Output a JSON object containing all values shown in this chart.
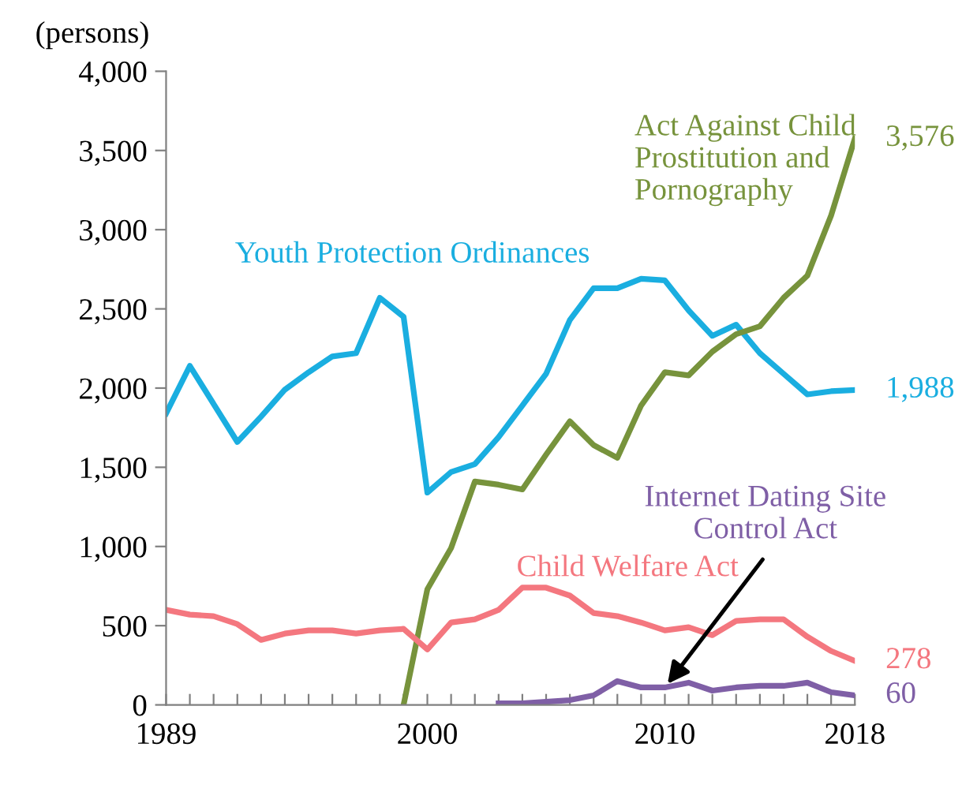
{
  "chart_data": {
    "type": "line",
    "ylabel": "(persons)",
    "x": [
      1989,
      1990,
      1991,
      1992,
      1993,
      1994,
      1995,
      1996,
      1997,
      1998,
      1999,
      2000,
      2001,
      2002,
      2003,
      2004,
      2005,
      2006,
      2007,
      2008,
      2009,
      2010,
      2011,
      2012,
      2013,
      2014,
      2015,
      2016,
      2017,
      2018
    ],
    "series": [
      {
        "name": "Youth Protection Ordinances",
        "color": "#1aaee0",
        "values": [
          1840,
          2140,
          1900,
          1660,
          1820,
          1990,
          2100,
          2200,
          2220,
          2570,
          2450,
          1340,
          1470,
          1520,
          1690,
          1890,
          2090,
          2430,
          2630,
          2630,
          2690,
          2680,
          2490,
          2330,
          2400,
          2220,
          2090,
          1960,
          1980,
          1988
        ],
        "value_labels": [
          null,
          null,
          null,
          null,
          null,
          null,
          null,
          null,
          null,
          null,
          null,
          null,
          null,
          null,
          null,
          null,
          null,
          null,
          null,
          null,
          null,
          null,
          null,
          null,
          null,
          null,
          null,
          null,
          null,
          "1,988"
        ]
      },
      {
        "name": "Act Against Child\nProstitution and\nPornography",
        "color": "#77933c",
        "values": [
          null,
          null,
          null,
          null,
          null,
          null,
          null,
          null,
          null,
          null,
          0,
          730,
          990,
          1410,
          1390,
          1360,
          1580,
          1790,
          1640,
          1560,
          1890,
          2100,
          2080,
          2230,
          2340,
          2390,
          2570,
          2710,
          3090,
          3576
        ],
        "value_labels": [
          null,
          null,
          null,
          null,
          null,
          null,
          null,
          null,
          null,
          null,
          null,
          null,
          null,
          null,
          null,
          null,
          null,
          null,
          null,
          null,
          null,
          null,
          null,
          null,
          null,
          null,
          null,
          null,
          null,
          "3,576"
        ]
      },
      {
        "name": "Child Welfare Act",
        "color": "#f4777f",
        "values": [
          600,
          570,
          560,
          510,
          410,
          450,
          470,
          470,
          450,
          470,
          480,
          350,
          520,
          540,
          600,
          740,
          740,
          690,
          580,
          560,
          520,
          470,
          490,
          440,
          530,
          540,
          540,
          430,
          340,
          278
        ],
        "value_labels": [
          null,
          null,
          null,
          null,
          null,
          null,
          null,
          null,
          null,
          null,
          null,
          null,
          null,
          null,
          null,
          null,
          null,
          null,
          null,
          null,
          null,
          null,
          null,
          null,
          null,
          null,
          null,
          null,
          null,
          "278"
        ]
      },
      {
        "name": "Internet Dating Site\nControl Act",
        "color": "#7f5fa6",
        "values": [
          null,
          null,
          null,
          null,
          null,
          null,
          null,
          null,
          null,
          null,
          null,
          null,
          null,
          null,
          10,
          10,
          20,
          30,
          60,
          150,
          110,
          110,
          140,
          90,
          110,
          120,
          120,
          140,
          80,
          60
        ],
        "value_labels": [
          null,
          null,
          null,
          null,
          null,
          null,
          null,
          null,
          null,
          null,
          null,
          null,
          null,
          null,
          null,
          null,
          null,
          null,
          null,
          null,
          null,
          null,
          null,
          null,
          null,
          null,
          null,
          null,
          null,
          "60"
        ]
      }
    ],
    "xlim": [
      1989,
      2018
    ],
    "xticks": [
      1989,
      {
        "value": 1990,
        "label": null
      },
      {
        "value": 1991,
        "label": null
      },
      {
        "value": 1992,
        "label": null
      },
      {
        "value": 1993,
        "label": null
      },
      {
        "value": 1994,
        "label": null
      },
      {
        "value": 1995,
        "label": null
      },
      {
        "value": 1996,
        "label": null
      },
      {
        "value": 1997,
        "label": null
      },
      {
        "value": 1998,
        "label": null
      },
      {
        "value": 1999,
        "label": null
      },
      2000,
      {
        "value": 2001,
        "label": null
      },
      {
        "value": 2002,
        "label": null
      },
      {
        "value": 2003,
        "label": null
      },
      {
        "value": 2004,
        "label": null
      },
      {
        "value": 2005,
        "label": null
      },
      {
        "value": 2006,
        "label": null
      },
      {
        "value": 2007,
        "label": null
      },
      {
        "value": 2008,
        "label": null
      },
      {
        "value": 2009,
        "label": null
      },
      2010,
      {
        "value": 2011,
        "label": null
      },
      {
        "value": 2012,
        "label": null
      },
      {
        "value": 2013,
        "label": null
      },
      {
        "value": 2014,
        "label": null
      },
      {
        "value": 2015,
        "label": null
      },
      {
        "value": 2016,
        "label": null
      },
      {
        "value": 2017,
        "label": null
      },
      2018
    ],
    "ylim": [
      0,
      4000
    ],
    "yticks": [
      0,
      {
        "value": 500,
        "label": "500"
      },
      {
        "value": 1000,
        "label": "1,000"
      },
      {
        "value": 1500,
        "label": "1,500"
      },
      {
        "value": 2000,
        "label": "2,000"
      },
      {
        "value": 2500,
        "label": "2,500"
      },
      {
        "value": 3000,
        "label": "3,000"
      },
      {
        "value": 3500,
        "label": "3,500"
      },
      {
        "value": 4000,
        "label": "4,000"
      }
    ],
    "grid": false,
    "marker": "none",
    "line_style": "solid"
  }
}
